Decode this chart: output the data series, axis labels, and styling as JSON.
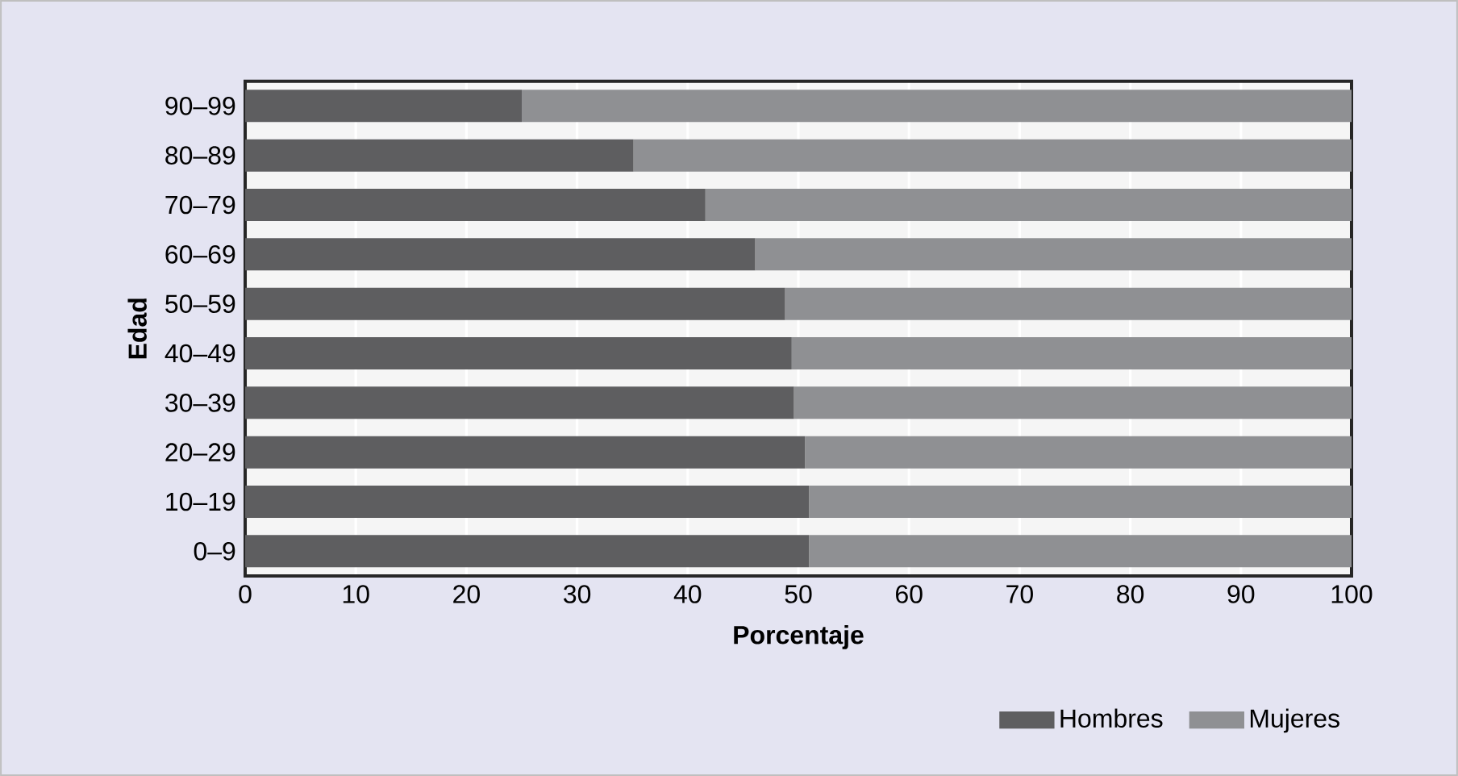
{
  "chart_data": {
    "type": "bar",
    "orientation": "horizontal",
    "stacked": true,
    "xlabel": "Porcentaje",
    "ylabel": "Edad",
    "categories": [
      "90–99",
      "80–89",
      "70–79",
      "60–69",
      "50–59",
      "40–49",
      "30–39",
      "20–29",
      "10–19",
      "0–9"
    ],
    "series": [
      {
        "name": "Hombres",
        "color": "#5e5e60",
        "values": [
          25,
          35.1,
          41.6,
          46.1,
          48.8,
          49.4,
          49.6,
          50.6,
          51,
          51
        ]
      },
      {
        "name": "Mujeres",
        "color": "#8f9093",
        "values": [
          75,
          64.9,
          58.4,
          53.9,
          51.2,
          50.6,
          50.4,
          49.4,
          49,
          49
        ]
      }
    ],
    "xlim": [
      0,
      100
    ],
    "xticks": [
      0,
      10,
      20,
      30,
      40,
      50,
      60,
      70,
      80,
      90,
      100
    ],
    "grid": "x",
    "legend": "bottom right"
  }
}
